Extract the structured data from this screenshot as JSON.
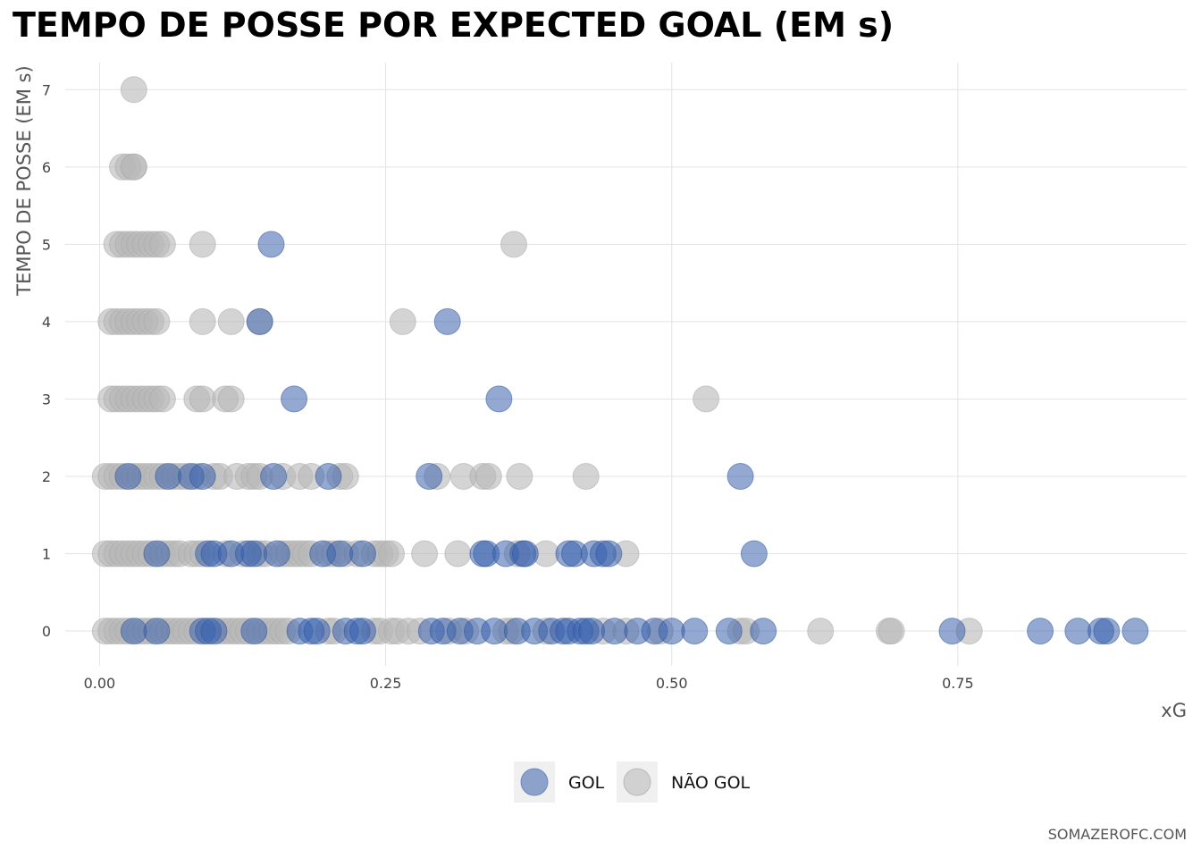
{
  "title": "TEMPO DE POSSE POR EXPECTED GOAL (EM s)",
  "source": "SOMAZEROFC.COM",
  "chart_data": {
    "type": "scatter",
    "title": "TEMPO DE POSSE POR EXPECTED GOAL (EM s)",
    "xlabel": "xG",
    "ylabel": "TEMPO DE POSSE (EM s)",
    "xlim": [
      -0.03,
      0.95
    ],
    "ylim": [
      -0.45,
      7.35
    ],
    "xticks": [
      0.0,
      0.25,
      0.5,
      0.75
    ],
    "xtick_labels": [
      "0.00",
      "0.25",
      "0.50",
      "0.75"
    ],
    "yticks": [
      0,
      1,
      2,
      3,
      4,
      5,
      6,
      7
    ],
    "ytick_labels": [
      "0",
      "1",
      "2",
      "3",
      "4",
      "5",
      "6",
      "7"
    ],
    "grid": true,
    "legend_position": "bottom",
    "series": [
      {
        "name": "GOL",
        "color": "#3a62ad",
        "points": [
          [
            0.15,
            5
          ],
          [
            0.14,
            4
          ],
          [
            0.304,
            4
          ],
          [
            0.17,
            3
          ],
          [
            0.349,
            3
          ],
          [
            0.025,
            2
          ],
          [
            0.06,
            2
          ],
          [
            0.08,
            2
          ],
          [
            0.09,
            2
          ],
          [
            0.152,
            2
          ],
          [
            0.2,
            2
          ],
          [
            0.288,
            2
          ],
          [
            0.56,
            2
          ],
          [
            0.05,
            1
          ],
          [
            0.095,
            1
          ],
          [
            0.1,
            1
          ],
          [
            0.115,
            1
          ],
          [
            0.13,
            1
          ],
          [
            0.135,
            1
          ],
          [
            0.155,
            1
          ],
          [
            0.195,
            1
          ],
          [
            0.21,
            1
          ],
          [
            0.23,
            1
          ],
          [
            0.335,
            1
          ],
          [
            0.338,
            1
          ],
          [
            0.355,
            1
          ],
          [
            0.37,
            1
          ],
          [
            0.372,
            1
          ],
          [
            0.41,
            1
          ],
          [
            0.415,
            1
          ],
          [
            0.432,
            1
          ],
          [
            0.44,
            1
          ],
          [
            0.445,
            1
          ],
          [
            0.572,
            1
          ],
          [
            0.03,
            0
          ],
          [
            0.05,
            0
          ],
          [
            0.09,
            0
          ],
          [
            0.095,
            0
          ],
          [
            0.1,
            0
          ],
          [
            0.135,
            0
          ],
          [
            0.175,
            0
          ],
          [
            0.185,
            0
          ],
          [
            0.19,
            0
          ],
          [
            0.215,
            0
          ],
          [
            0.225,
            0
          ],
          [
            0.23,
            0
          ],
          [
            0.29,
            0
          ],
          [
            0.3,
            0
          ],
          [
            0.315,
            0
          ],
          [
            0.33,
            0
          ],
          [
            0.345,
            0
          ],
          [
            0.365,
            0
          ],
          [
            0.38,
            0
          ],
          [
            0.395,
            0
          ],
          [
            0.405,
            0
          ],
          [
            0.41,
            0
          ],
          [
            0.42,
            0
          ],
          [
            0.425,
            0
          ],
          [
            0.43,
            0
          ],
          [
            0.45,
            0
          ],
          [
            0.47,
            0
          ],
          [
            0.485,
            0
          ],
          [
            0.5,
            0
          ],
          [
            0.52,
            0
          ],
          [
            0.55,
            0
          ],
          [
            0.58,
            0
          ],
          [
            0.745,
            0
          ],
          [
            0.822,
            0
          ],
          [
            0.855,
            0
          ],
          [
            0.875,
            0
          ],
          [
            0.88,
            0
          ],
          [
            0.905,
            0
          ]
        ]
      },
      {
        "name": "NÃO GOL",
        "color": "#b8b8b8",
        "points": [
          [
            0.03,
            7
          ],
          [
            0.02,
            6
          ],
          [
            0.025,
            6
          ],
          [
            0.03,
            6
          ],
          [
            0.03,
            6
          ],
          [
            0.015,
            5
          ],
          [
            0.02,
            5
          ],
          [
            0.025,
            5
          ],
          [
            0.03,
            5
          ],
          [
            0.035,
            5
          ],
          [
            0.04,
            5
          ],
          [
            0.045,
            5
          ],
          [
            0.05,
            5
          ],
          [
            0.055,
            5
          ],
          [
            0.09,
            5
          ],
          [
            0.362,
            5
          ],
          [
            0.01,
            4
          ],
          [
            0.015,
            4
          ],
          [
            0.02,
            4
          ],
          [
            0.025,
            4
          ],
          [
            0.03,
            4
          ],
          [
            0.035,
            4
          ],
          [
            0.04,
            4
          ],
          [
            0.045,
            4
          ],
          [
            0.05,
            4
          ],
          [
            0.09,
            4
          ],
          [
            0.115,
            4
          ],
          [
            0.14,
            4
          ],
          [
            0.265,
            4
          ],
          [
            0.01,
            3
          ],
          [
            0.015,
            3
          ],
          [
            0.02,
            3
          ],
          [
            0.025,
            3
          ],
          [
            0.03,
            3
          ],
          [
            0.035,
            3
          ],
          [
            0.04,
            3
          ],
          [
            0.045,
            3
          ],
          [
            0.05,
            3
          ],
          [
            0.055,
            3
          ],
          [
            0.085,
            3
          ],
          [
            0.09,
            3
          ],
          [
            0.11,
            3
          ],
          [
            0.115,
            3
          ],
          [
            0.53,
            3
          ],
          [
            0.005,
            2
          ],
          [
            0.01,
            2
          ],
          [
            0.015,
            2
          ],
          [
            0.02,
            2
          ],
          [
            0.03,
            2
          ],
          [
            0.035,
            2
          ],
          [
            0.04,
            2
          ],
          [
            0.045,
            2
          ],
          [
            0.05,
            2
          ],
          [
            0.055,
            2
          ],
          [
            0.065,
            2
          ],
          [
            0.07,
            2
          ],
          [
            0.075,
            2
          ],
          [
            0.085,
            2
          ],
          [
            0.1,
            2
          ],
          [
            0.105,
            2
          ],
          [
            0.12,
            2
          ],
          [
            0.13,
            2
          ],
          [
            0.135,
            2
          ],
          [
            0.14,
            2
          ],
          [
            0.16,
            2
          ],
          [
            0.175,
            2
          ],
          [
            0.185,
            2
          ],
          [
            0.21,
            2
          ],
          [
            0.215,
            2
          ],
          [
            0.295,
            2
          ],
          [
            0.318,
            2
          ],
          [
            0.335,
            2
          ],
          [
            0.34,
            2
          ],
          [
            0.367,
            2
          ],
          [
            0.425,
            2
          ],
          [
            0.005,
            1
          ],
          [
            0.01,
            1
          ],
          [
            0.015,
            1
          ],
          [
            0.02,
            1
          ],
          [
            0.025,
            1
          ],
          [
            0.03,
            1
          ],
          [
            0.035,
            1
          ],
          [
            0.04,
            1
          ],
          [
            0.045,
            1
          ],
          [
            0.055,
            1
          ],
          [
            0.06,
            1
          ],
          [
            0.065,
            1
          ],
          [
            0.07,
            1
          ],
          [
            0.08,
            1
          ],
          [
            0.085,
            1
          ],
          [
            0.09,
            1
          ],
          [
            0.11,
            1
          ],
          [
            0.125,
            1
          ],
          [
            0.14,
            1
          ],
          [
            0.145,
            1
          ],
          [
            0.16,
            1
          ],
          [
            0.165,
            1
          ],
          [
            0.17,
            1
          ],
          [
            0.175,
            1
          ],
          [
            0.18,
            1
          ],
          [
            0.185,
            1
          ],
          [
            0.2,
            1
          ],
          [
            0.205,
            1
          ],
          [
            0.215,
            1
          ],
          [
            0.225,
            1
          ],
          [
            0.24,
            1
          ],
          [
            0.245,
            1
          ],
          [
            0.25,
            1
          ],
          [
            0.255,
            1
          ],
          [
            0.284,
            1
          ],
          [
            0.313,
            1
          ],
          [
            0.365,
            1
          ],
          [
            0.39,
            1
          ],
          [
            0.46,
            1
          ],
          [
            0.005,
            0
          ],
          [
            0.01,
            0
          ],
          [
            0.015,
            0
          ],
          [
            0.02,
            0
          ],
          [
            0.025,
            0
          ],
          [
            0.035,
            0
          ],
          [
            0.04,
            0
          ],
          [
            0.045,
            0
          ],
          [
            0.055,
            0
          ],
          [
            0.06,
            0
          ],
          [
            0.065,
            0
          ],
          [
            0.07,
            0
          ],
          [
            0.075,
            0
          ],
          [
            0.08,
            0
          ],
          [
            0.085,
            0
          ],
          [
            0.105,
            0
          ],
          [
            0.11,
            0
          ],
          [
            0.115,
            0
          ],
          [
            0.12,
            0
          ],
          [
            0.125,
            0
          ],
          [
            0.13,
            0
          ],
          [
            0.14,
            0
          ],
          [
            0.145,
            0
          ],
          [
            0.15,
            0
          ],
          [
            0.155,
            0
          ],
          [
            0.16,
            0
          ],
          [
            0.165,
            0
          ],
          [
            0.2,
            0
          ],
          [
            0.205,
            0
          ],
          [
            0.24,
            0
          ],
          [
            0.245,
            0
          ],
          [
            0.255,
            0
          ],
          [
            0.26,
            0
          ],
          [
            0.27,
            0
          ],
          [
            0.28,
            0
          ],
          [
            0.305,
            0
          ],
          [
            0.32,
            0
          ],
          [
            0.355,
            0
          ],
          [
            0.36,
            0
          ],
          [
            0.39,
            0
          ],
          [
            0.44,
            0
          ],
          [
            0.46,
            0
          ],
          [
            0.49,
            0
          ],
          [
            0.56,
            0
          ],
          [
            0.565,
            0
          ],
          [
            0.63,
            0
          ],
          [
            0.69,
            0
          ],
          [
            0.692,
            0
          ],
          [
            0.76,
            0
          ]
        ]
      }
    ]
  }
}
